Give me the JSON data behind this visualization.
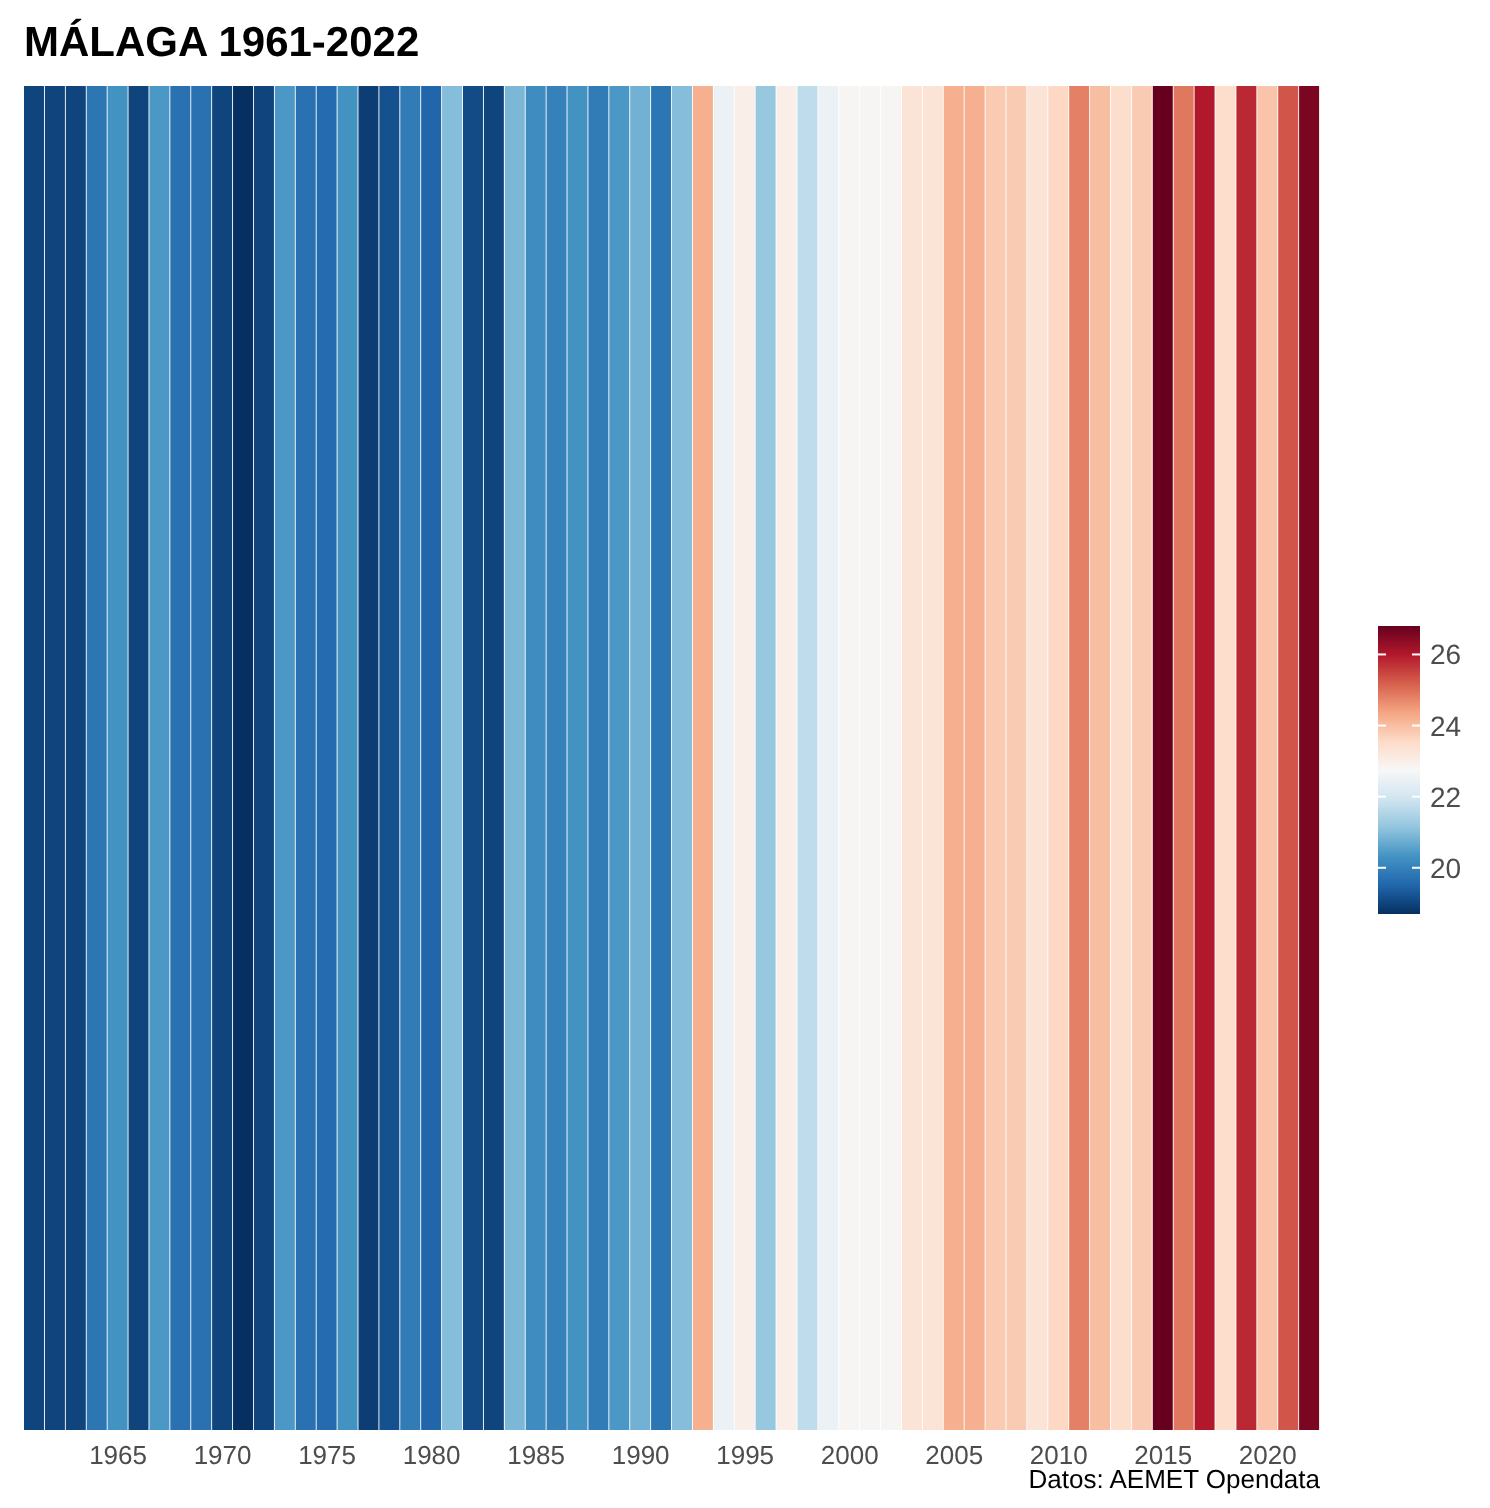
{
  "chart_data": {
    "type": "heatmap",
    "title": "MÁLAGA 1961-2022",
    "categories": [
      null,
      null,
      null,
      null,
      "1965",
      null,
      null,
      null,
      null,
      "1970",
      null,
      null,
      null,
      null,
      "1975",
      null,
      null,
      null,
      null,
      "1980",
      null,
      null,
      null,
      null,
      "1985",
      null,
      null,
      null,
      null,
      "1990",
      null,
      null,
      null,
      null,
      "1995",
      null,
      null,
      null,
      null,
      "2000",
      null,
      null,
      null,
      null,
      "2005",
      null,
      null,
      null,
      null,
      "2010",
      null,
      null,
      null,
      null,
      "2015",
      null,
      null,
      null,
      null,
      "2020",
      null,
      null
    ],
    "y_categories": [
      null
    ],
    "cells": [
      [
        19.0,
        19.0,
        19.0,
        19.8,
        20.3,
        19.0,
        20.4,
        19.7,
        19.7,
        19.0,
        18.7,
        19.0,
        20.4,
        19.7,
        19.6,
        20.3,
        18.9,
        19.2,
        19.9,
        19.5,
        21.0,
        19.1,
        19.0,
        20.9,
        20.2,
        20.0,
        20.3,
        19.9,
        20.4,
        20.8,
        19.8,
        21.0,
        24.2,
        22.5,
        23.0,
        21.2,
        23.0,
        21.7,
        22.5,
        22.8,
        22.8,
        22.8,
        23.3,
        23.3,
        24.2,
        24.2,
        23.8,
        23.8,
        23.3,
        23.6,
        24.8,
        24.0,
        23.5,
        23.8,
        26.8,
        24.9,
        26.0,
        23.5,
        25.8,
        23.9,
        25.3,
        26.6
      ]
    ],
    "clim": [
      18.7,
      26.8
    ],
    "cticks": [
      20,
      22,
      24,
      26
    ],
    "annotations": [
      "Datos: AEMET Opendata"
    ]
  }
}
